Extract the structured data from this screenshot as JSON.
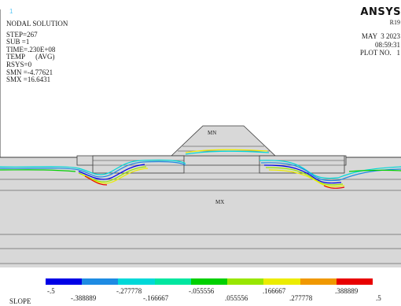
{
  "window_number": "1",
  "brand": "ANSYS",
  "release": "R19",
  "info_left": {
    "title": "NODAL SOLUTION",
    "step": "STEP=267",
    "sub": "SUB =1",
    "time": "TIME=.230E+08",
    "temp": "TEMP      (AVG)",
    "rsys": "RSYS=0",
    "smn": "SMN =-4.77621",
    "smx": "SMX =16.6431"
  },
  "info_right": {
    "date": "MAY  3 2023",
    "time": "08:59:31",
    "plot_no": "PLOT NO.   1"
  },
  "regions": {
    "mn": "MN",
    "mx": "MX"
  },
  "legend": {
    "colors": [
      "#0000e6",
      "#1e8be3",
      "#00d8d8",
      "#00e6a0",
      "#00d000",
      "#98e600",
      "#ecec00",
      "#f09800",
      "#e80000"
    ],
    "ticks_top": [
      "-.5",
      "-.277778",
      "-.055556",
      ".166667",
      ".388889"
    ],
    "ticks_bottom": [
      "-.388889",
      "-.166667",
      ".055556",
      ".277778",
      ".5"
    ]
  },
  "bottom_label": "SLOPE"
}
